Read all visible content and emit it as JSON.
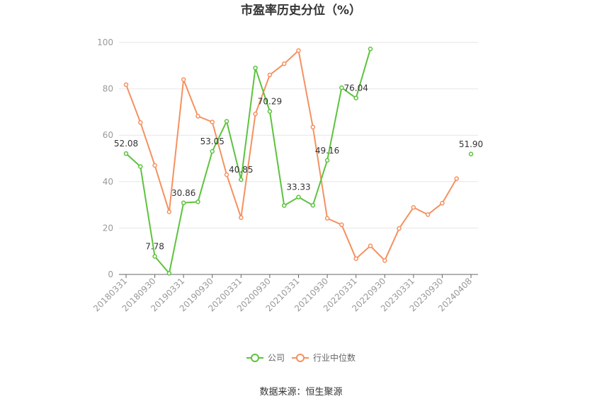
{
  "chart_data": {
    "type": "line",
    "title": "市盈率历史分位（%）",
    "source": "数据来源：恒生聚源",
    "ylim": [
      0,
      100
    ],
    "yticks": [
      0,
      20,
      40,
      60,
      80,
      100
    ],
    "grid": true,
    "legend_position": "bottom",
    "x_tick_labels": [
      "20180331",
      "20180930",
      "20190331",
      "20190930",
      "20200331",
      "20200930",
      "20210331",
      "20210930",
      "20220331",
      "20220930",
      "20230331",
      "20230930",
      "20240408"
    ],
    "series": [
      {
        "name": "公司",
        "color": "#5cc33d",
        "values": [
          52.08,
          46.5,
          7.78,
          0.5,
          30.86,
          31.3,
          53.05,
          66.0,
          40.85,
          89.0,
          70.29,
          29.7,
          33.33,
          29.8,
          49.16,
          80.5,
          76.04,
          97.2,
          null,
          null,
          null,
          null,
          null,
          null,
          51.9
        ],
        "labels": [
          {
            "index": 0,
            "text": "52.08"
          },
          {
            "index": 2,
            "text": "7.78"
          },
          {
            "index": 4,
            "text": "30.86"
          },
          {
            "index": 6,
            "text": "53.05"
          },
          {
            "index": 8,
            "text": "40.85"
          },
          {
            "index": 10,
            "text": "70.29"
          },
          {
            "index": 12,
            "text": "33.33"
          },
          {
            "index": 14,
            "text": "49.16"
          },
          {
            "index": 16,
            "text": "76.04"
          },
          {
            "index": 24,
            "text": "51.90"
          }
        ]
      },
      {
        "name": "行业中位数",
        "color": "#f5915f",
        "values": [
          81.8,
          65.5,
          47.0,
          27.0,
          84.0,
          68.2,
          65.7,
          43.0,
          24.5,
          69.2,
          86.0,
          90.8,
          96.5,
          63.5,
          24.2,
          21.4,
          6.8,
          12.3,
          6.0,
          19.8,
          28.9,
          25.8,
          30.7,
          41.3,
          null
        ]
      }
    ]
  }
}
